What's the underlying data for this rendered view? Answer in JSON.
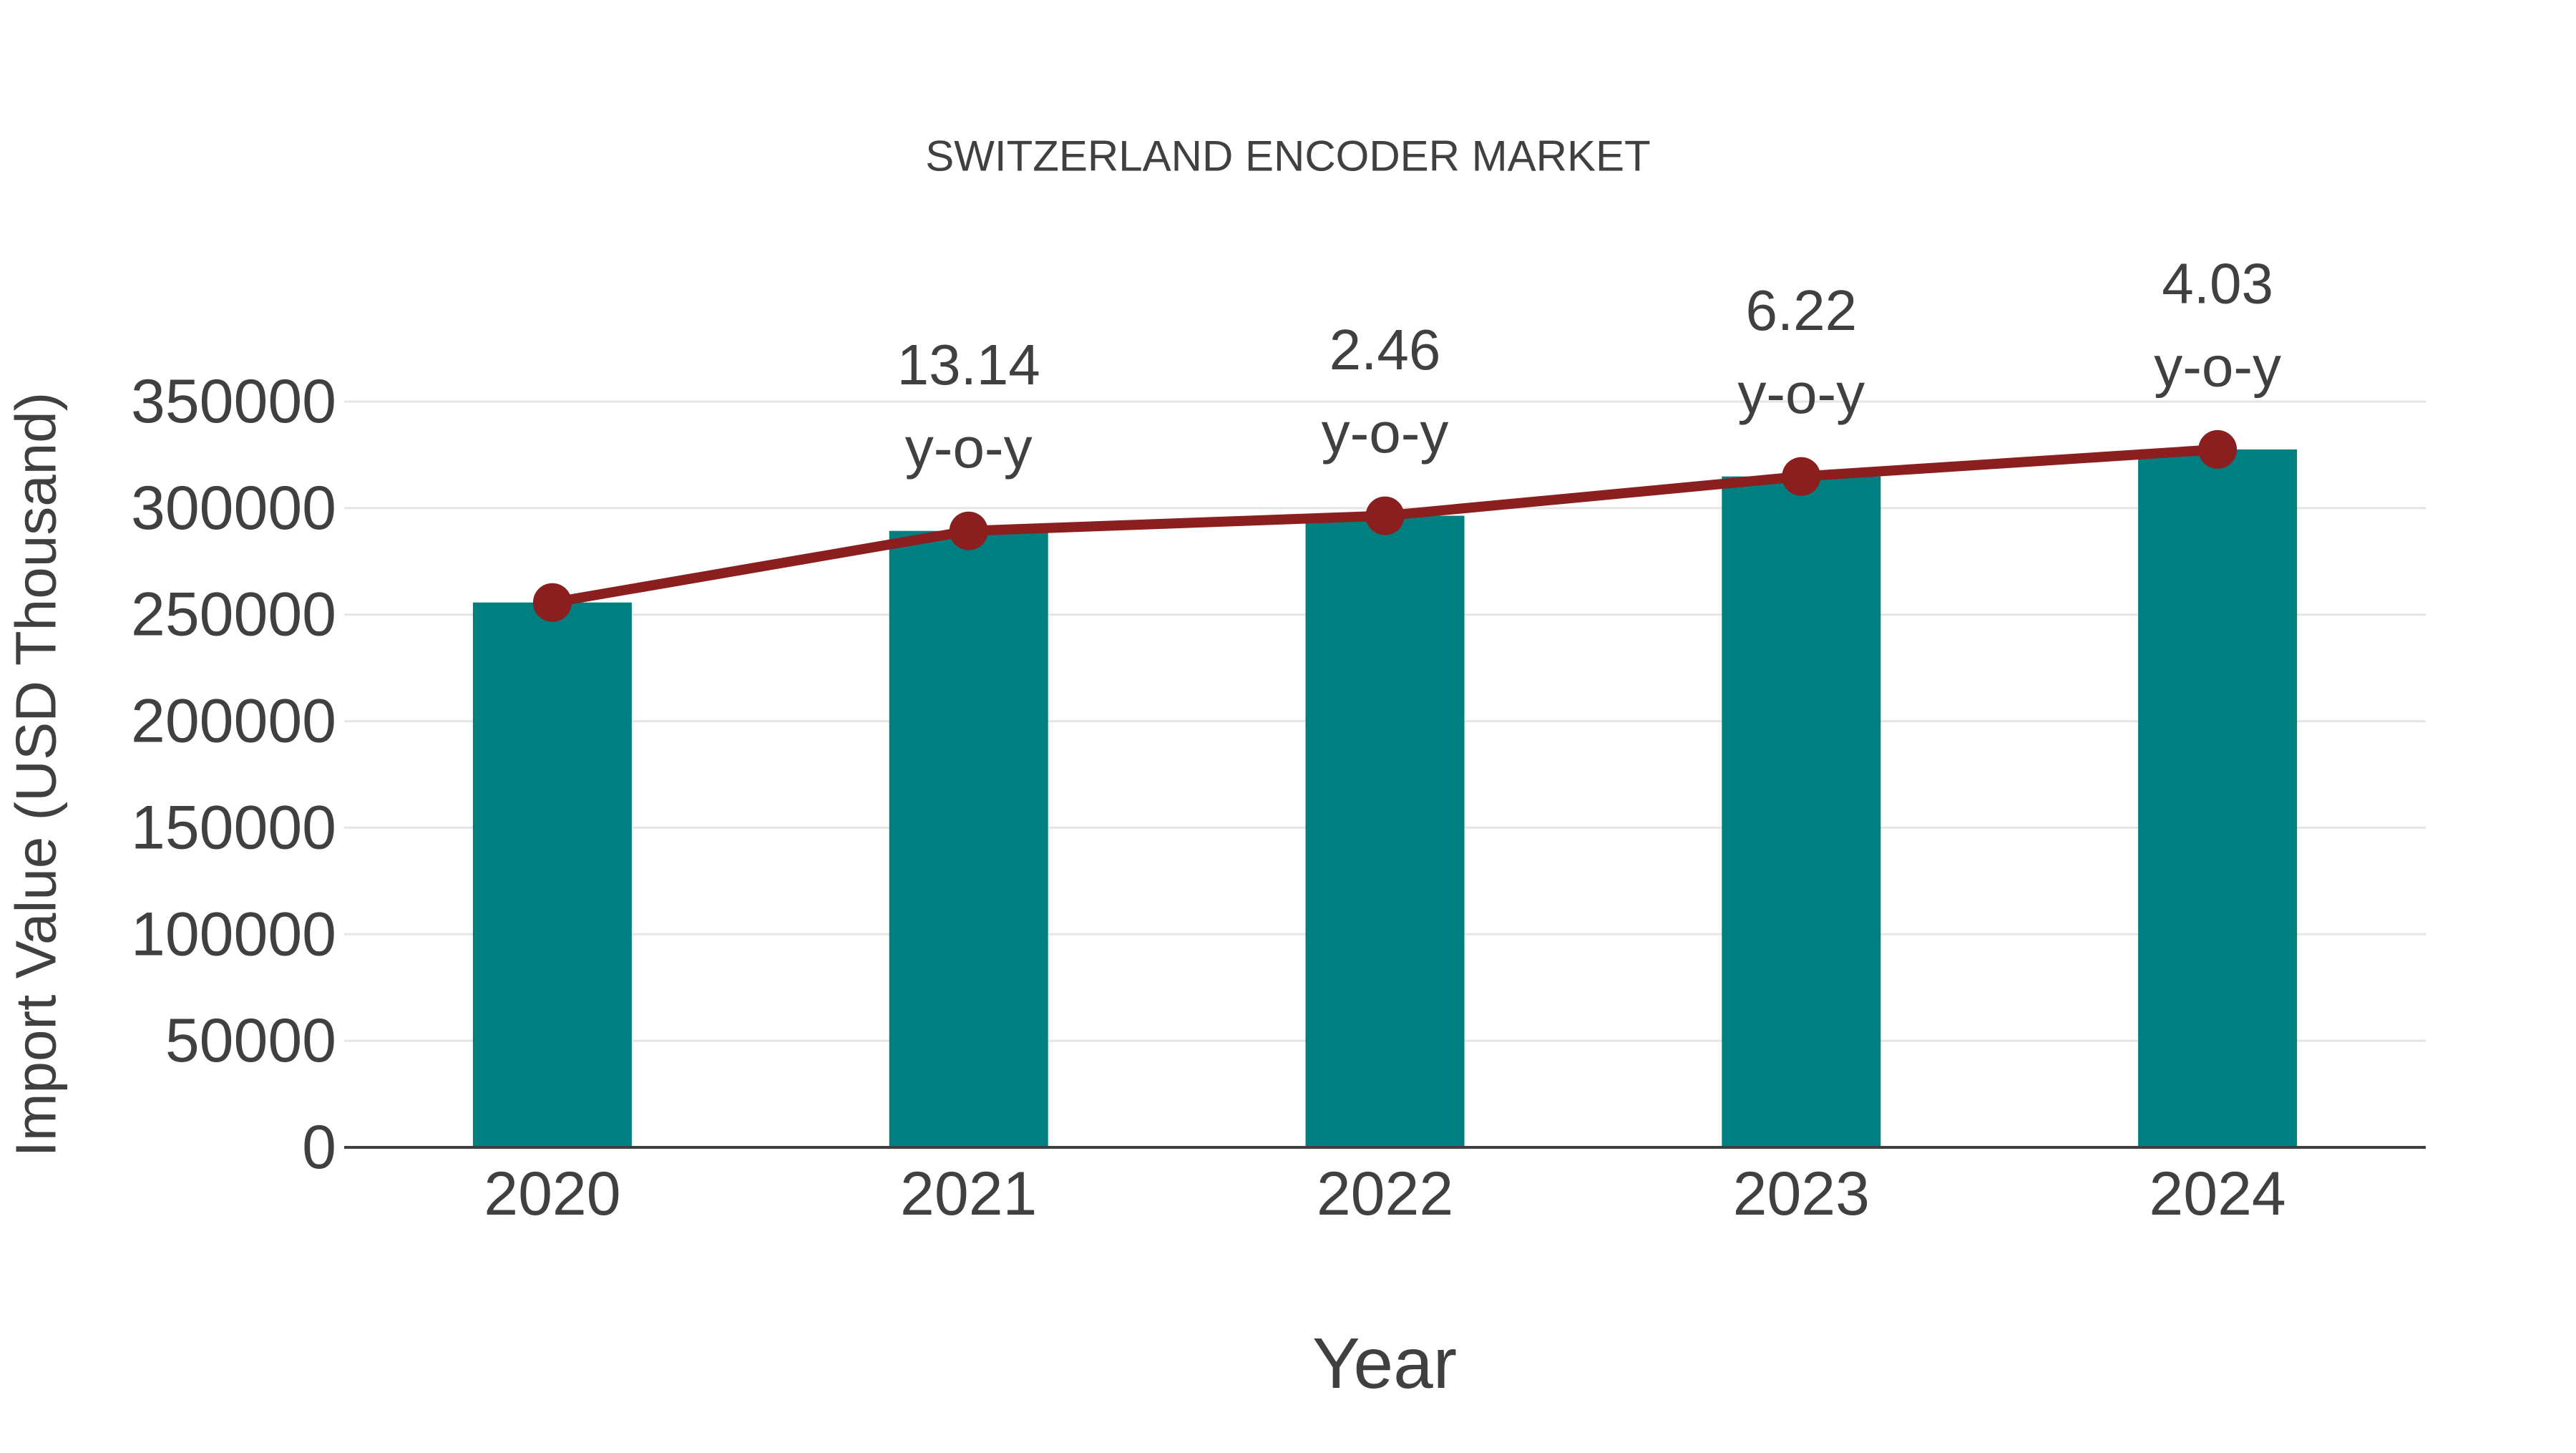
{
  "title": "SWITZERLAND ENCODER MARKET",
  "colors": {
    "bar": "#007f80",
    "line": "#8b1e1e",
    "marker": "#8b1e1e",
    "text": "#404040",
    "grid": "#e5e5e5",
    "axis": "#3f3f3f",
    "background": "#ffffff"
  },
  "chart_data": {
    "type": "bar",
    "title": "SWITZERLAND ENCODER MARKET",
    "xlabel": "Year",
    "ylabel": "Import Value (USD Thousand)",
    "categories": [
      "2020",
      "2021",
      "2022",
      "2023",
      "2024"
    ],
    "series": [
      {
        "name": "Import Value (bars)",
        "type": "bar",
        "values": [
          255700,
          289300,
          296400,
          314850,
          327540
        ]
      },
      {
        "name": "Import Value (trend line)",
        "type": "line",
        "values": [
          255700,
          289300,
          296400,
          314850,
          327540
        ]
      }
    ],
    "annotations": [
      {
        "category": "2021",
        "value_line": "13.14",
        "unit_line": "y-o-y"
      },
      {
        "category": "2022",
        "value_line": "2.46",
        "unit_line": "y-o-y"
      },
      {
        "category": "2023",
        "value_line": "6.22",
        "unit_line": "y-o-y"
      },
      {
        "category": "2024",
        "value_line": "4.03",
        "unit_line": "y-o-y"
      }
    ],
    "ylim": [
      0,
      350000
    ],
    "yticks": [
      0,
      50000,
      100000,
      150000,
      200000,
      250000,
      300000,
      350000
    ],
    "grid": "horizontal",
    "legend": "none"
  }
}
